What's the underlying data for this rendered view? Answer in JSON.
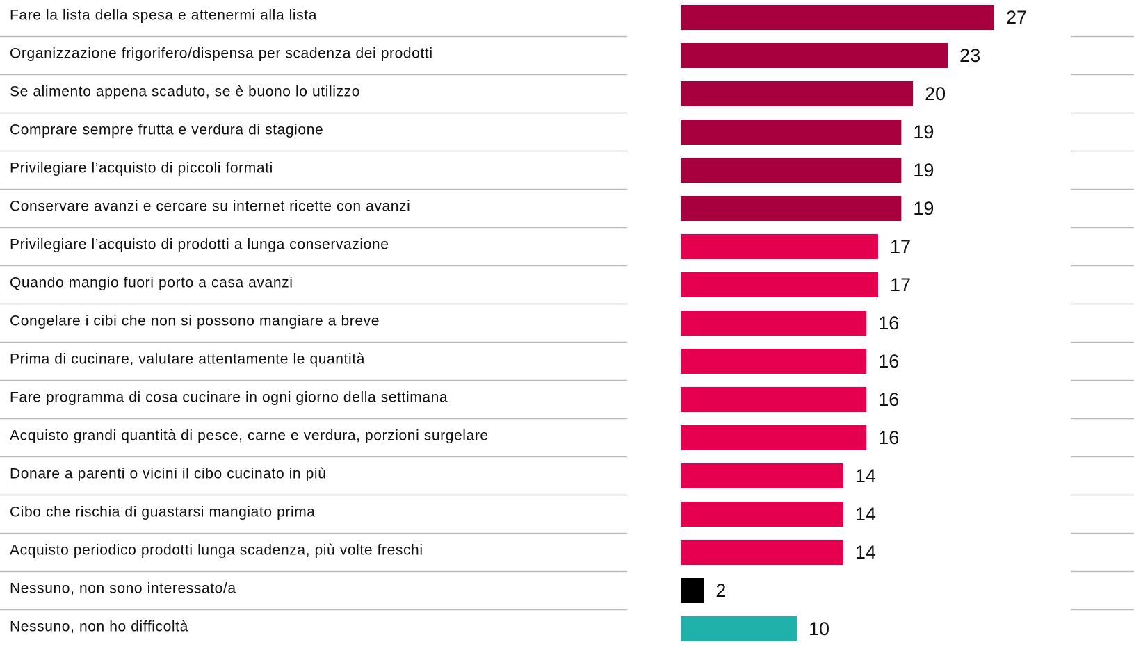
{
  "chart_data": {
    "type": "bar",
    "orientation": "horizontal",
    "categories": [
      "Fare la lista della spesa e attenermi alla lista",
      "Organizzazione frigorifero/dispensa per scadenza dei prodotti",
      "Se alimento appena scaduto, se è buono lo utilizzo",
      "Comprare sempre frutta e verdura di stagione",
      "Privilegiare l’acquisto di piccoli formati",
      "Conservare avanzi e cercare su internet ricette con avanzi",
      "Privilegiare l’acquisto di prodotti a lunga conservazione",
      "Quando mangio fuori porto a casa avanzi",
      "Congelare i cibi che non si possono mangiare a breve",
      "Prima di cucinare, valutare attentamente le quantità",
      "Fare programma di cosa cucinare in ogni giorno della settimana",
      "Acquisto grandi quantità di pesce, carne e verdura, porzioni surgelare",
      "Donare a parenti o vicini il cibo cucinato in più",
      "Cibo che rischia di guastarsi mangiato prima",
      "Acquisto periodico prodotti lunga scadenza, più volte freschi",
      "Nessuno, non sono interessato/a",
      "Nessuno, non ho difficoltà"
    ],
    "values": [
      27,
      23,
      20,
      19,
      19,
      19,
      17,
      17,
      16,
      16,
      16,
      16,
      14,
      14,
      14,
      2,
      10
    ],
    "colors": [
      "#a8003f",
      "#a8003f",
      "#a8003f",
      "#a8003f",
      "#a8003f",
      "#a8003f",
      "#e5004f",
      "#e5004f",
      "#e5004f",
      "#e5004f",
      "#e5004f",
      "#e5004f",
      "#e5004f",
      "#e5004f",
      "#e5004f",
      "#000000",
      "#20b2aa"
    ]
  }
}
